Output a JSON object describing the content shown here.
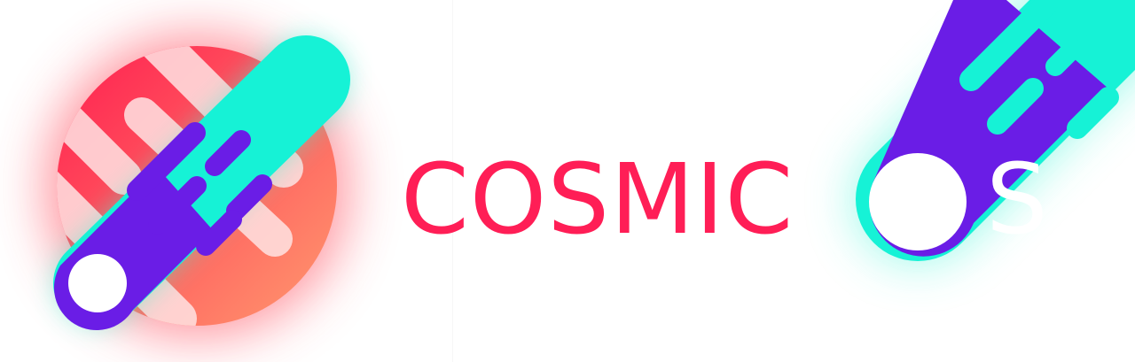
{
  "logo": {
    "wordmark": "COSMIC",
    "trailing_letter": "S"
  },
  "colors": {
    "wordmark": "#FF1E56",
    "trailing_letter": "#FFFFFF",
    "planet_start": "#FF1E50",
    "planet_end": "#FF9A6E",
    "planet_stripes": "#FFE3E3",
    "comet_outer": "#16F2D6",
    "comet_inner": "#6A1DE6",
    "comet_core": "#FFFFFF",
    "glow_red": "#FF4A5A",
    "glow_teal": "#3DF5D5"
  },
  "icons": [
    "planet-icon",
    "comet-icon",
    "comet-o-icon"
  ]
}
